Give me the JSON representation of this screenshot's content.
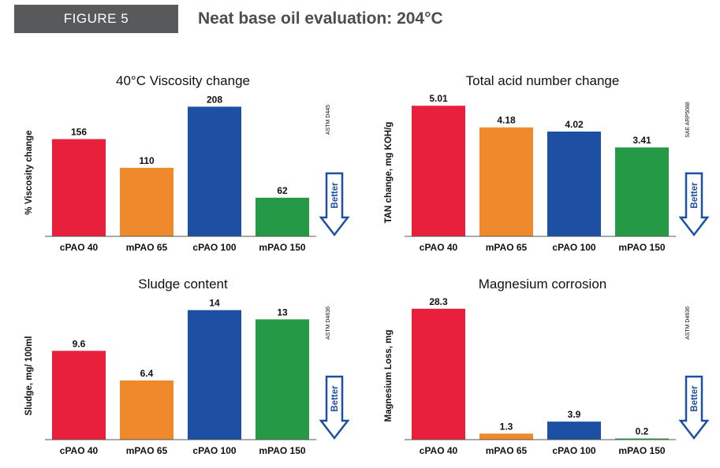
{
  "header": {
    "figure_label": "FIGURE 5",
    "title": "Neat base oil evaluation: 204°C"
  },
  "colors": {
    "cPAO 40": "#e8203b",
    "mPAO 65": "#ee8a2c",
    "cPAO 100": "#1d4fa3",
    "mPAO 150": "#259945",
    "better_arrow": "#1d4fa3"
  },
  "better_label": "Better",
  "chart_data": [
    {
      "type": "bar",
      "title": "40°C Viscosity change",
      "ylabel": "% Viscosity change",
      "standard": "ASTM D445",
      "categories": [
        "cPAO 40",
        "mPAO 65",
        "cPAO 100",
        "mPAO 150"
      ],
      "values": [
        156,
        110,
        208,
        62
      ],
      "value_labels": [
        "156",
        "110",
        "208",
        "62"
      ],
      "ylim": [
        0,
        230
      ],
      "grid": false
    },
    {
      "type": "bar",
      "title": "Total acid number change",
      "ylabel": "TAN change, mg KOH/g",
      "standard": "SAE ARP5088",
      "categories": [
        "cPAO 40",
        "mPAO 65",
        "cPAO 100",
        "mPAO 150"
      ],
      "values": [
        5.01,
        4.18,
        4.02,
        3.41
      ],
      "value_labels": [
        "5.01",
        "4.18",
        "4.02",
        "3.41"
      ],
      "ylim": [
        0,
        5.5
      ],
      "grid": false
    },
    {
      "type": "bar",
      "title": "Sludge content",
      "ylabel": "Sludge, mg/ 100ml",
      "standard": "ASTM D4636",
      "categories": [
        "cPAO 40",
        "mPAO 65",
        "cPAO 100",
        "mPAO 150"
      ],
      "values": [
        9.6,
        6.4,
        14,
        13
      ],
      "value_labels": [
        "9.6",
        "6.4",
        "14",
        "13"
      ],
      "ylim": [
        0,
        15.5
      ],
      "grid": false
    },
    {
      "type": "bar",
      "title": "Magnesium corrosion",
      "ylabel": "Magnesium Loss, mg",
      "standard": "ASTM D4636",
      "categories": [
        "cPAO 40",
        "mPAO 65",
        "cPAO 100",
        "mPAO 150"
      ],
      "values": [
        28.3,
        1.3,
        3.9,
        0.2
      ],
      "value_labels": [
        "28.3",
        "1.3",
        "3.9",
        "0.2"
      ],
      "ylim": [
        0,
        31
      ],
      "grid": false
    }
  ]
}
